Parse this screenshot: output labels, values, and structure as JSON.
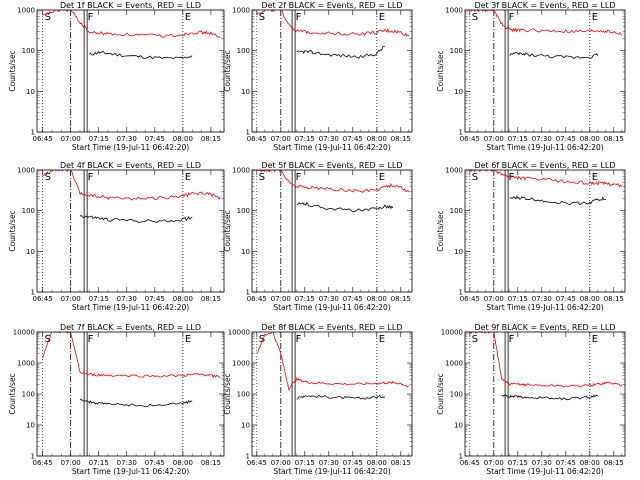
{
  "figure": {
    "x_axis_label": "Start Time (19-Jul-11 06:42:20)",
    "y_axis_label": "Counts/sec",
    "line_colors": {
      "events": "#000000",
      "lld": "#ff0000"
    },
    "x_tick_labels": [
      "06:45",
      "07:00",
      "07:15",
      "07:30",
      "07:45",
      "08:00",
      "08:15"
    ],
    "y_tick_labels_3dec": [
      "1",
      "10",
      "100",
      "1000"
    ],
    "y_tick_labels_4dec": [
      "1",
      "10",
      "100",
      "1000",
      "10000"
    ]
  },
  "chart_data": [
    {
      "type": "line",
      "title": "Det 1f BLACK = Events, RED = LLD",
      "xlabel": "Start Time (19-Jul-11 06:42:20)",
      "ylabel": "Counts/sec",
      "xlim": [
        "06:42",
        "08:22"
      ],
      "ylim": [
        1,
        1000
      ],
      "yscale": "log",
      "markers": [
        {
          "label": "S",
          "x": "06:45"
        },
        {
          "label": "F",
          "x": "07:08"
        },
        {
          "label": "E",
          "x": "08:00"
        }
      ],
      "x": [
        "06:45",
        "06:50",
        "06:55",
        "07:00",
        "07:05",
        "07:10",
        "07:15",
        "07:20",
        "07:30",
        "07:40",
        "07:50",
        "08:00",
        "08:05",
        "08:10",
        "08:15",
        "08:20"
      ],
      "series": [
        {
          "name": "BLACK = Events",
          "values": [
            null,
            null,
            null,
            null,
            null,
            80,
            90,
            85,
            75,
            70,
            65,
            65,
            75,
            null,
            null,
            null
          ]
        },
        {
          "name": "RED = LLD",
          "values": [
            700,
            900,
            1000,
            1000,
            500,
            280,
            270,
            260,
            250,
            240,
            230,
            250,
            280,
            280,
            270,
            200
          ]
        }
      ]
    },
    {
      "type": "line",
      "title": "Det 2f BLACK = Events, RED = LLD",
      "xlabel": "Start Time (19-Jul-11 06:42:20)",
      "ylabel": "Counts/sec",
      "xlim": [
        "06:42",
        "08:22"
      ],
      "ylim": [
        1,
        1000
      ],
      "yscale": "log",
      "markers": [
        {
          "label": "S",
          "x": "06:45"
        },
        {
          "label": "F",
          "x": "07:08"
        },
        {
          "label": "E",
          "x": "08:00"
        }
      ],
      "x": [
        "06:45",
        "06:50",
        "06:55",
        "07:00",
        "07:05",
        "07:10",
        "07:15",
        "07:20",
        "07:30",
        "07:40",
        "07:50",
        "08:00",
        "08:05",
        "08:10",
        "08:15",
        "08:20"
      ],
      "series": [
        {
          "name": "BLACK = Events",
          "values": [
            null,
            null,
            null,
            null,
            null,
            90,
            95,
            90,
            80,
            75,
            70,
            85,
            130,
            null,
            null,
            null
          ]
        },
        {
          "name": "RED = LLD",
          "values": [
            800,
            1000,
            1000,
            1000,
            450,
            300,
            290,
            280,
            270,
            260,
            260,
            280,
            310,
            300,
            280,
            230
          ]
        }
      ]
    },
    {
      "type": "line",
      "title": "Det 3f BLACK = Events, RED = LLD",
      "xlabel": "Start Time (19-Jul-11 06:42:20)",
      "ylabel": "Counts/sec",
      "xlim": [
        "06:42",
        "08:22"
      ],
      "ylim": [
        1,
        1000
      ],
      "yscale": "log",
      "markers": [
        {
          "label": "S",
          "x": "06:45"
        },
        {
          "label": "F",
          "x": "07:08"
        },
        {
          "label": "E",
          "x": "08:00"
        }
      ],
      "x": [
        "06:45",
        "06:50",
        "06:55",
        "07:00",
        "07:05",
        "07:10",
        "07:15",
        "07:20",
        "07:30",
        "07:40",
        "07:50",
        "08:00",
        "08:05",
        "08:10",
        "08:15",
        "08:20"
      ],
      "series": [
        {
          "name": "BLACK = Events",
          "values": [
            null,
            null,
            null,
            null,
            null,
            80,
            85,
            80,
            75,
            70,
            68,
            70,
            80,
            null,
            null,
            null
          ]
        },
        {
          "name": "RED = LLD",
          "values": [
            1000,
            1000,
            1000,
            1000,
            450,
            330,
            320,
            320,
            310,
            300,
            290,
            300,
            310,
            300,
            280,
            250
          ]
        }
      ]
    },
    {
      "type": "line",
      "title": "Det 4f BLACK = Events, RED = LLD",
      "xlabel": "Start Time (19-Jul-11 06:42:20)",
      "ylabel": "Counts/sec",
      "xlim": [
        "06:42",
        "08:22"
      ],
      "ylim": [
        1,
        1000
      ],
      "yscale": "log",
      "markers": [
        {
          "label": "S",
          "x": "06:45"
        },
        {
          "label": "F",
          "x": "07:08"
        },
        {
          "label": "E",
          "x": "08:00"
        }
      ],
      "x": [
        "06:45",
        "06:50",
        "06:55",
        "07:00",
        "07:05",
        "07:10",
        "07:15",
        "07:20",
        "07:30",
        "07:40",
        "07:50",
        "08:00",
        "08:05",
        "08:10",
        "08:15",
        "08:20"
      ],
      "series": [
        {
          "name": "BLACK = Events",
          "values": [
            null,
            null,
            null,
            null,
            75,
            70,
            65,
            60,
            58,
            55,
            55,
            60,
            70,
            null,
            null,
            null
          ]
        },
        {
          "name": "RED = LLD",
          "values": [
            700,
            1000,
            1000,
            1000,
            260,
            240,
            220,
            210,
            200,
            200,
            210,
            230,
            260,
            270,
            250,
            200
          ]
        }
      ]
    },
    {
      "type": "line",
      "title": "Det 5f BLACK = Events, RED = LLD",
      "xlabel": "Start Time (19-Jul-11 06:42:20)",
      "ylabel": "Counts/sec",
      "xlim": [
        "06:42",
        "08:22"
      ],
      "ylim": [
        1,
        1000
      ],
      "yscale": "log",
      "markers": [
        {
          "label": "S",
          "x": "06:45"
        },
        {
          "label": "F",
          "x": "07:08"
        },
        {
          "label": "E",
          "x": "08:00"
        }
      ],
      "x": [
        "06:45",
        "06:50",
        "06:55",
        "07:00",
        "07:05",
        "07:10",
        "07:15",
        "07:20",
        "07:30",
        "07:40",
        "07:50",
        "08:00",
        "08:05",
        "08:10",
        "08:15",
        "08:20"
      ],
      "series": [
        {
          "name": "BLACK = Events",
          "values": [
            null,
            null,
            null,
            null,
            null,
            140,
            150,
            130,
            115,
            105,
            100,
            110,
            130,
            120,
            null,
            null
          ]
        },
        {
          "name": "RED = LLD",
          "values": [
            1000,
            1000,
            1000,
            1000,
            500,
            400,
            380,
            370,
            340,
            320,
            300,
            330,
            400,
            420,
            380,
            280
          ]
        }
      ]
    },
    {
      "type": "line",
      "title": "Det 6f BLACK = Events, RED = LLD",
      "xlabel": "Start Time (19-Jul-11 06:42:20)",
      "ylabel": "Counts/sec",
      "xlim": [
        "06:42",
        "08:22"
      ],
      "ylim": [
        1,
        1000
      ],
      "yscale": "log",
      "markers": [
        {
          "label": "S",
          "x": "06:45"
        },
        {
          "label": "F",
          "x": "07:08"
        },
        {
          "label": "E",
          "x": "08:00"
        }
      ],
      "x": [
        "06:45",
        "06:50",
        "06:55",
        "07:00",
        "07:05",
        "07:10",
        "07:15",
        "07:20",
        "07:30",
        "07:40",
        "07:50",
        "08:00",
        "08:05",
        "08:10",
        "08:15",
        "08:20"
      ],
      "series": [
        {
          "name": "BLACK = Events",
          "values": [
            null,
            null,
            null,
            null,
            null,
            200,
            210,
            200,
            180,
            160,
            150,
            160,
            190,
            200,
            null,
            null
          ]
        },
        {
          "name": "RED = LLD",
          "values": [
            1000,
            1000,
            1000,
            1000,
            800,
            650,
            640,
            620,
            580,
            540,
            500,
            480,
            470,
            470,
            450,
            400
          ]
        }
      ]
    },
    {
      "type": "line",
      "title": "Det 7f BLACK = Events, RED = LLD",
      "xlabel": "Start Time (19-Jul-11 06:42:20)",
      "ylabel": "Counts/sec",
      "xlim": [
        "06:42",
        "08:22"
      ],
      "ylim": [
        1,
        10000
      ],
      "yscale": "log",
      "markers": [
        {
          "label": "S",
          "x": "06:45"
        },
        {
          "label": "F",
          "x": "07:08"
        },
        {
          "label": "E",
          "x": "08:00"
        }
      ],
      "x": [
        "06:45",
        "06:50",
        "06:55",
        "07:00",
        "07:05",
        "07:10",
        "07:15",
        "07:20",
        "07:30",
        "07:40",
        "07:50",
        "08:00",
        "08:05",
        "08:10",
        "08:15",
        "08:20"
      ],
      "series": [
        {
          "name": "BLACK = Events",
          "values": [
            null,
            null,
            null,
            null,
            70,
            55,
            50,
            48,
            45,
            42,
            45,
            50,
            60,
            null,
            null,
            null
          ]
        },
        {
          "name": "RED = LLD",
          "values": [
            1500,
            10000,
            10000,
            10000,
            500,
            420,
            410,
            400,
            390,
            380,
            380,
            390,
            420,
            430,
            400,
            350
          ]
        }
      ]
    },
    {
      "type": "line",
      "title": "Det 8f BLACK = Events, RED = LLD",
      "xlabel": "Start Time (19-Jul-11 06:42:20)",
      "ylabel": "Counts/sec",
      "xlim": [
        "06:42",
        "08:22"
      ],
      "ylim": [
        1,
        10000
      ],
      "yscale": "log",
      "markers": [
        {
          "label": "S",
          "x": "06:45"
        },
        {
          "label": "F",
          "x": "07:08"
        },
        {
          "label": "E",
          "x": "08:00"
        }
      ],
      "x": [
        "06:45",
        "06:50",
        "06:55",
        "07:00",
        "07:05",
        "07:10",
        "07:15",
        "07:20",
        "07:30",
        "07:40",
        "07:50",
        "08:00",
        "08:05",
        "08:10",
        "08:15",
        "08:20"
      ],
      "series": [
        {
          "name": "BLACK = Events",
          "values": [
            null,
            null,
            null,
            null,
            null,
            70,
            90,
            85,
            80,
            75,
            72,
            80,
            85,
            null,
            null,
            null
          ]
        },
        {
          "name": "RED = LLD",
          "values": [
            2000,
            8000,
            10000,
            2000,
            150,
            300,
            250,
            230,
            220,
            210,
            210,
            220,
            230,
            230,
            220,
            170
          ]
        }
      ]
    },
    {
      "type": "line",
      "title": "Det 9f BLACK = Events, RED = LLD",
      "xlabel": "Start Time (19-Jul-11 06:42:20)",
      "ylabel": "Counts/sec",
      "xlim": [
        "06:42",
        "08:22"
      ],
      "ylim": [
        1,
        10000
      ],
      "yscale": "log",
      "markers": [
        {
          "label": "S",
          "x": "06:45"
        },
        {
          "label": "F",
          "x": "07:08"
        },
        {
          "label": "E",
          "x": "08:00"
        }
      ],
      "x": [
        "06:45",
        "06:50",
        "06:55",
        "07:00",
        "07:05",
        "07:10",
        "07:15",
        "07:20",
        "07:30",
        "07:40",
        "07:50",
        "08:00",
        "08:05",
        "08:10",
        "08:15",
        "08:20"
      ],
      "series": [
        {
          "name": "BLACK = Events",
          "values": [
            null,
            null,
            null,
            null,
            90,
            85,
            80,
            78,
            75,
            70,
            72,
            80,
            95,
            null,
            null,
            null
          ]
        },
        {
          "name": "RED = LLD",
          "values": [
            10000,
            10000,
            10000,
            10000,
            300,
            200,
            210,
            200,
            190,
            185,
            180,
            190,
            210,
            230,
            220,
            190
          ]
        }
      ]
    }
  ]
}
